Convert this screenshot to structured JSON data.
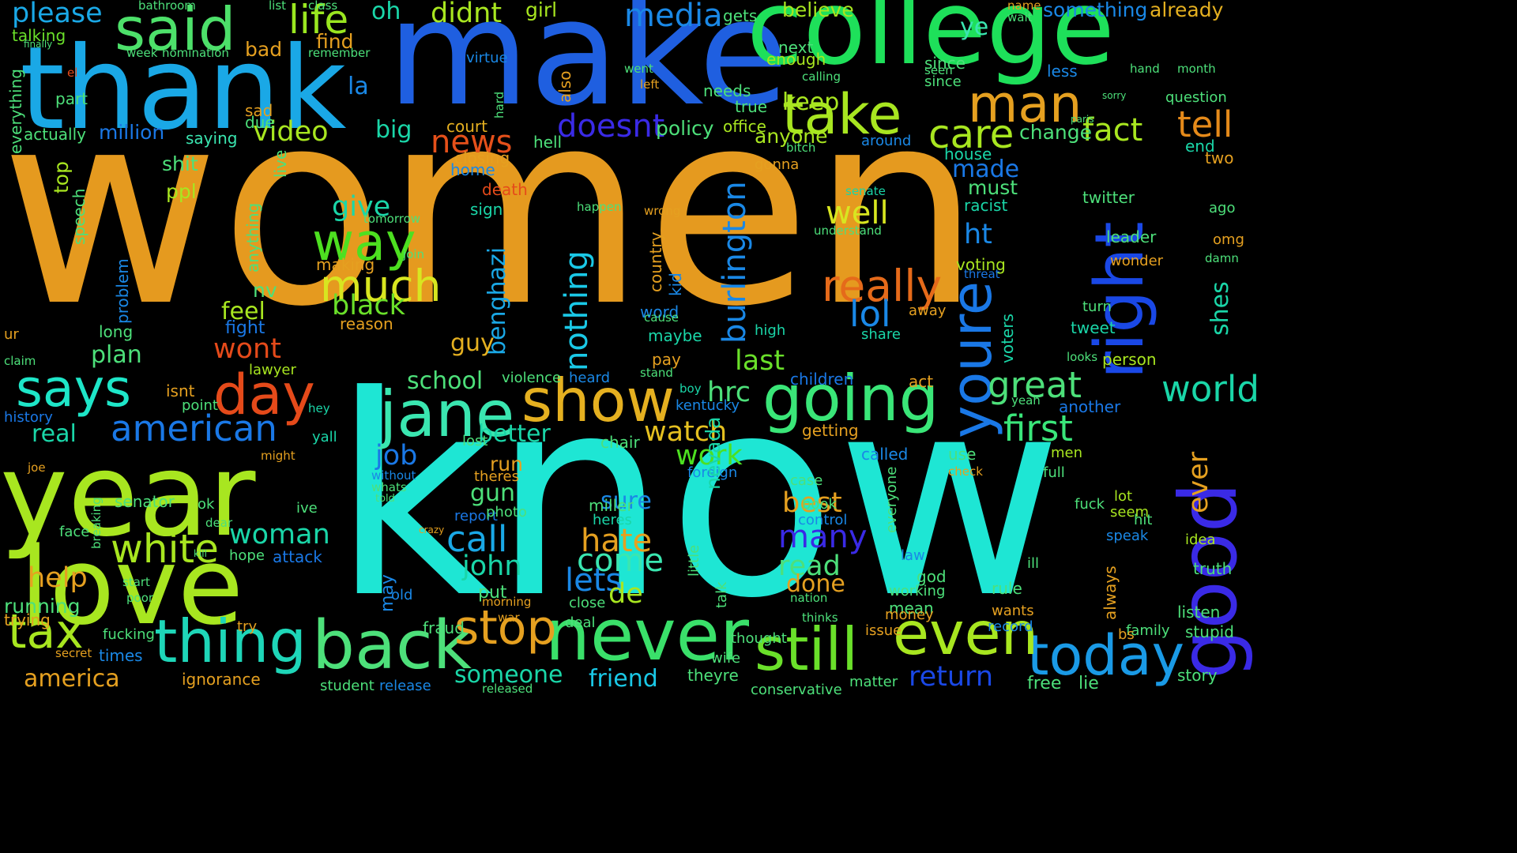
{
  "words": [
    {
      "text": "women",
      "color": "#e59a1f"
    },
    {
      "text": "know",
      "color": "#1ee6d4"
    },
    {
      "text": "make",
      "color": "#1f5fe0"
    },
    {
      "text": "college",
      "color": "#1ee05a"
    },
    {
      "text": "thank",
      "color": "#1aa8e6"
    },
    {
      "text": "year",
      "color": "#a8e620"
    },
    {
      "text": "love",
      "color": "#a8e620"
    },
    {
      "text": "good",
      "color": "#3a2ae6"
    },
    {
      "text": "back",
      "color": "#4de07a"
    },
    {
      "text": "never",
      "color": "#3ae06a"
    },
    {
      "text": "thing",
      "color": "#1ed6b8"
    },
    {
      "text": "said",
      "color": "#4de06a"
    },
    {
      "text": "jane",
      "color": "#3ae6b0"
    },
    {
      "text": "show",
      "color": "#e5b020"
    },
    {
      "text": "going",
      "color": "#3ae678"
    },
    {
      "text": "today",
      "color": "#1a9ae6"
    },
    {
      "text": "still",
      "color": "#6ae02a"
    },
    {
      "text": "even",
      "color": "#a8e620"
    },
    {
      "text": "take",
      "color": "#a8e620"
    },
    {
      "text": "man",
      "color": "#e5a020"
    },
    {
      "text": "right",
      "color": "#1a48e6"
    },
    {
      "text": "youre",
      "color": "#1a78e6"
    },
    {
      "text": "says",
      "color": "#1ee6c8"
    },
    {
      "text": "day",
      "color": "#e54a1a"
    },
    {
      "text": "tax",
      "color": "#a8e620"
    },
    {
      "text": "stop",
      "color": "#e5a020"
    },
    {
      "text": "really",
      "color": "#e56a1a"
    },
    {
      "text": "way",
      "color": "#4de020"
    },
    {
      "text": "much",
      "color": "#d8e620"
    },
    {
      "text": "white",
      "color": "#a8e620"
    },
    {
      "text": "american",
      "color": "#1a78e6"
    },
    {
      "text": "life",
      "color": "#9ae620"
    },
    {
      "text": "media",
      "color": "#1a88e6"
    },
    {
      "text": "tell",
      "color": "#e58a1a"
    },
    {
      "text": "care",
      "color": "#a8e620"
    },
    {
      "text": "world",
      "color": "#1ad6a8"
    },
    {
      "text": "first",
      "color": "#3ae67a"
    },
    {
      "text": "great",
      "color": "#4de07a"
    },
    {
      "text": "burlington",
      "color": "#1a88e6"
    },
    {
      "text": "nothing",
      "color": "#1ac8e6"
    },
    {
      "text": "benghazi",
      "color": "#1aa8e6"
    },
    {
      "text": "news",
      "color": "#e5501a"
    },
    {
      "text": "doesnt",
      "color": "#3a2ae6"
    },
    {
      "text": "fact",
      "color": "#a8e620"
    },
    {
      "text": "well",
      "color": "#d8e620"
    },
    {
      "text": "lol",
      "color": "#1a88e6"
    },
    {
      "text": "ever",
      "color": "#e5a020"
    },
    {
      "text": "shes",
      "color": "#1ad6a8"
    },
    {
      "text": "hate",
      "color": "#e5a020"
    },
    {
      "text": "call",
      "color": "#1aa8e6"
    },
    {
      "text": "come",
      "color": "#3ae6b0"
    },
    {
      "text": "lets",
      "color": "#1a88e6"
    },
    {
      "text": "de",
      "color": "#a8e620"
    },
    {
      "text": "someone",
      "color": "#1ad6a8"
    },
    {
      "text": "friend",
      "color": "#1ac8e6"
    },
    {
      "text": "return",
      "color": "#1a48e6"
    },
    {
      "text": "america",
      "color": "#e5a020"
    },
    {
      "text": "woman",
      "color": "#1ad6a8"
    },
    {
      "text": "help",
      "color": "#e5a020"
    },
    {
      "text": "john",
      "color": "#1ad6a8"
    },
    {
      "text": "work",
      "color": "#4de020"
    },
    {
      "text": "watch",
      "color": "#e5c020"
    },
    {
      "text": "best",
      "color": "#e5a020"
    },
    {
      "text": "many",
      "color": "#3a2ae6"
    },
    {
      "text": "read",
      "color": "#4de07a"
    },
    {
      "text": "done",
      "color": "#e5a020"
    },
    {
      "text": "last",
      "color": "#6ae02a"
    },
    {
      "text": "hrc",
      "color": "#4de07a"
    },
    {
      "text": "job",
      "color": "#1a78e6"
    },
    {
      "text": "better",
      "color": "#1ad6a8"
    },
    {
      "text": "school",
      "color": "#4de07a"
    },
    {
      "text": "wont",
      "color": "#e54a1a"
    },
    {
      "text": "feel",
      "color": "#a8e620"
    },
    {
      "text": "give",
      "color": "#1ad6a8"
    },
    {
      "text": "black",
      "color": "#6ae02a"
    },
    {
      "text": "guy",
      "color": "#e5b020"
    },
    {
      "text": "video",
      "color": "#a8e620"
    },
    {
      "text": "keep",
      "color": "#a8e620"
    },
    {
      "text": "please",
      "color": "#1aa8e6"
    },
    {
      "text": "oh",
      "color": "#1ad6a8"
    },
    {
      "text": "didnt",
      "color": "#a8e620"
    },
    {
      "text": "made",
      "color": "#1a78e6"
    },
    {
      "text": "twitter",
      "color": "#4de07a"
    },
    {
      "text": "sure",
      "color": "#1a88e6"
    },
    {
      "text": "gun",
      "color": "#4de07a"
    },
    {
      "text": "run",
      "color": "#e5a020"
    },
    {
      "text": "million",
      "color": "#1a78e6"
    },
    {
      "text": "ht",
      "color": "#1a88e6"
    },
    {
      "text": "change",
      "color": "#4de07a"
    },
    {
      "text": "must",
      "color": "#4de07a"
    },
    {
      "text": "plan",
      "color": "#4de07a"
    },
    {
      "text": "real",
      "color": "#1ad6a8"
    },
    {
      "text": "ye",
      "color": "#3ae6b0"
    },
    {
      "text": "la",
      "color": "#1a88e6"
    },
    {
      "text": "anyone",
      "color": "#a8e620"
    },
    {
      "text": "policy",
      "color": "#4de07a"
    },
    {
      "text": "big",
      "color": "#1ad6a8"
    },
    {
      "text": "top",
      "color": "#a8e620"
    },
    {
      "text": "ppl",
      "color": "#a8e620"
    },
    {
      "text": "shit",
      "color": "#4de07a"
    },
    {
      "text": "saying",
      "color": "#3ae6b0"
    },
    {
      "text": "find",
      "color": "#e5a020"
    },
    {
      "text": "bad",
      "color": "#e5a020"
    },
    {
      "text": "girl",
      "color": "#a8e620"
    },
    {
      "text": "believe",
      "color": "#a8e620"
    },
    {
      "text": "something",
      "color": "#1a88e6"
    },
    {
      "text": "already",
      "color": "#e5b020"
    },
    {
      "text": "talking",
      "color": "#6ae02a"
    },
    {
      "text": "hell",
      "color": "#4de07a"
    },
    {
      "text": "court",
      "color": "#e5b020"
    },
    {
      "text": "house",
      "color": "#1ad6a8"
    },
    {
      "text": "end",
      "color": "#1ad6a8"
    },
    {
      "text": "two",
      "color": "#e5a020"
    },
    {
      "text": "question",
      "color": "#4de07a"
    },
    {
      "text": "less",
      "color": "#1a88e6"
    },
    {
      "text": "since",
      "color": "#4de07a"
    },
    {
      "text": "next",
      "color": "#4de07a"
    },
    {
      "text": "enough",
      "color": "#a8e620"
    },
    {
      "text": "needs",
      "color": "#4de07a"
    },
    {
      "text": "true",
      "color": "#4de07a"
    },
    {
      "text": "office",
      "color": "#a8e620"
    },
    {
      "text": "also",
      "color": "#e5a020"
    },
    {
      "text": "part",
      "color": "#4de07a"
    },
    {
      "text": "actually",
      "color": "#4de07a"
    },
    {
      "text": "everything",
      "color": "#4de07a"
    },
    {
      "text": "sad",
      "color": "#e5a020"
    },
    {
      "text": "due",
      "color": "#4de07a"
    },
    {
      "text": "speech",
      "color": "#4de07a"
    },
    {
      "text": "anything",
      "color": "#4de07a"
    },
    {
      "text": "nv",
      "color": "#4de07a"
    },
    {
      "text": "problem",
      "color": "#1a88e6"
    },
    {
      "text": "long",
      "color": "#4de07a"
    },
    {
      "text": "fight",
      "color": "#1a78e6"
    },
    {
      "text": "isnt",
      "color": "#e5a020"
    },
    {
      "text": "point",
      "color": "#4de07a"
    },
    {
      "text": "lawyer",
      "color": "#a8e620"
    },
    {
      "text": "home",
      "color": "#1a88e6"
    },
    {
      "text": "death",
      "color": "#e54a1a"
    },
    {
      "text": "sign",
      "color": "#1ad6a8"
    },
    {
      "text": "closing",
      "color": "#e5a020"
    },
    {
      "text": "reason",
      "color": "#e5a020"
    },
    {
      "text": "making",
      "color": "#e5a020"
    },
    {
      "text": "join",
      "color": "#4de07a"
    },
    {
      "text": "country",
      "color": "#e5a020"
    },
    {
      "text": "kid",
      "color": "#1a88e6"
    },
    {
      "text": "word",
      "color": "#1a88e6"
    },
    {
      "text": "maybe",
      "color": "#1ad6a8"
    },
    {
      "text": "cause",
      "color": "#4de07a"
    },
    {
      "text": "pay",
      "color": "#e5a020"
    },
    {
      "text": "wrong",
      "color": "#e5a020"
    },
    {
      "text": "happen",
      "color": "#4de07a"
    },
    {
      "text": "senate",
      "color": "#1ad6a8"
    },
    {
      "text": "understand",
      "color": "#4de07a"
    },
    {
      "text": "racist",
      "color": "#1ad6a8"
    },
    {
      "text": "leader",
      "color": "#4de07a"
    },
    {
      "text": "wonder",
      "color": "#e5a020"
    },
    {
      "text": "voting",
      "color": "#a8e620"
    },
    {
      "text": "threat",
      "color": "#1a78e6"
    },
    {
      "text": "voters",
      "color": "#1ad6a8"
    },
    {
      "text": "tweet",
      "color": "#1ad6a8"
    },
    {
      "text": "person",
      "color": "#a8e620"
    },
    {
      "text": "another",
      "color": "#1a78e6"
    },
    {
      "text": "away",
      "color": "#e5a020"
    },
    {
      "text": "high",
      "color": "#1ad6a8"
    },
    {
      "text": "share",
      "color": "#1ad6a8"
    },
    {
      "text": "children",
      "color": "#1a78e6"
    },
    {
      "text": "act",
      "color": "#e5a020"
    },
    {
      "text": "getting",
      "color": "#e5a020"
    },
    {
      "text": "called",
      "color": "#1a88e6"
    },
    {
      "text": "use",
      "color": "#4de07a"
    },
    {
      "text": "men",
      "color": "#a8e620"
    },
    {
      "text": "full",
      "color": "#4de07a"
    },
    {
      "text": "kentucky",
      "color": "#1a88e6"
    },
    {
      "text": "foreign",
      "color": "#1a88e6"
    },
    {
      "text": "nevada",
      "color": "#1ad6a8"
    },
    {
      "text": "chair",
      "color": "#4de07a"
    },
    {
      "text": "miller",
      "color": "#4de07a"
    },
    {
      "text": "heres",
      "color": "#1ad6a8"
    },
    {
      "text": "case",
      "color": "#4de07a"
    },
    {
      "text": "book",
      "color": "#4de07a"
    },
    {
      "text": "control",
      "color": "#1a88e6"
    },
    {
      "text": "lot",
      "color": "#a8e620"
    },
    {
      "text": "seem",
      "color": "#a8e620"
    },
    {
      "text": "speak",
      "color": "#1a88e6"
    },
    {
      "text": "idea",
      "color": "#a8e620"
    },
    {
      "text": "truth",
      "color": "#4de07a"
    },
    {
      "text": "report",
      "color": "#1a78e6"
    },
    {
      "text": "photo",
      "color": "#4de07a"
    },
    {
      "text": "lost",
      "color": "#4de07a"
    },
    {
      "text": "senator",
      "color": "#4de07a"
    },
    {
      "text": "ok",
      "color": "#4de07a"
    },
    {
      "text": "hope",
      "color": "#4de07a"
    },
    {
      "text": "attack",
      "color": "#1a78e6"
    },
    {
      "text": "ive",
      "color": "#4de07a"
    },
    {
      "text": "face",
      "color": "#4de07a"
    },
    {
      "text": "running",
      "color": "#4de07a"
    },
    {
      "text": "trying",
      "color": "#e5a020"
    },
    {
      "text": "put",
      "color": "#4de07a"
    },
    {
      "text": "morning",
      "color": "#e5a020"
    },
    {
      "text": "close",
      "color": "#4de07a"
    },
    {
      "text": "deal",
      "color": "#4de07a"
    },
    {
      "text": "mean",
      "color": "#4de07a"
    },
    {
      "text": "money",
      "color": "#e5a020"
    },
    {
      "text": "rule",
      "color": "#4de07a"
    },
    {
      "text": "wants",
      "color": "#e5a020"
    },
    {
      "text": "record",
      "color": "#1a88e6"
    },
    {
      "text": "issue",
      "color": "#e5a020"
    },
    {
      "text": "family",
      "color": "#4de07a"
    },
    {
      "text": "listen",
      "color": "#4de07a"
    },
    {
      "text": "stupid",
      "color": "#4de07a"
    },
    {
      "text": "story",
      "color": "#4de07a"
    },
    {
      "text": "free",
      "color": "#4de07a"
    },
    {
      "text": "lie",
      "color": "#4de07a"
    },
    {
      "text": "theyre",
      "color": "#4de07a"
    },
    {
      "text": "wife",
      "color": "#4de07a"
    },
    {
      "text": "thought",
      "color": "#4de07a"
    },
    {
      "text": "times",
      "color": "#1a88e6"
    },
    {
      "text": "ignorance",
      "color": "#e5a020"
    },
    {
      "text": "student",
      "color": "#4de07a"
    },
    {
      "text": "release",
      "color": "#1a88e6"
    },
    {
      "text": "fucking",
      "color": "#4de07a"
    },
    {
      "text": "try",
      "color": "#e5a020"
    },
    {
      "text": "old",
      "color": "#1a88e6"
    },
    {
      "text": "may",
      "color": "#1a88e6"
    },
    {
      "text": "fraud",
      "color": "#4de07a"
    },
    {
      "text": "live",
      "color": "#4de07a"
    },
    {
      "text": "always",
      "color": "#e5a020"
    },
    {
      "text": "bs",
      "color": "#e5a020"
    },
    {
      "text": "god",
      "color": "#4de07a"
    },
    {
      "text": "law",
      "color": "#1a88e6"
    },
    {
      "text": "working",
      "color": "#4de07a"
    },
    {
      "text": "talk",
      "color": "#4de07a"
    },
    {
      "text": "little",
      "color": "#4de07a"
    },
    {
      "text": "everyone",
      "color": "#4de07a"
    },
    {
      "text": "hit",
      "color": "#4de07a"
    },
    {
      "text": "fuck",
      "color": "#4de07a"
    },
    {
      "text": "conservative",
      "color": "#4de07a"
    },
    {
      "text": "matter",
      "color": "#4de07a"
    },
    {
      "text": "released",
      "color": "#4de07a"
    },
    {
      "text": "nation",
      "color": "#4de07a"
    },
    {
      "text": "turn",
      "color": "#4de07a"
    },
    {
      "text": "ago",
      "color": "#4de07a"
    },
    {
      "text": "omg",
      "color": "#e5a020"
    },
    {
      "text": "damn",
      "color": "#4de07a"
    },
    {
      "text": "around",
      "color": "#1a88e6"
    },
    {
      "text": "gonna",
      "color": "#e5a020"
    },
    {
      "text": "yall",
      "color": "#1ad6a8"
    },
    {
      "text": "hey",
      "color": "#1ad6a8"
    },
    {
      "text": "history",
      "color": "#1a78e6"
    },
    {
      "text": "claim",
      "color": "#4de07a"
    },
    {
      "text": "ur",
      "color": "#e5a020"
    },
    {
      "text": "looks",
      "color": "#4de07a"
    },
    {
      "text": "heard",
      "color": "#1a88e6"
    },
    {
      "text": "violence",
      "color": "#4de07a"
    },
    {
      "text": "boy",
      "color": "#1ad6a8"
    },
    {
      "text": "stand",
      "color": "#4de07a"
    },
    {
      "text": "yeah",
      "color": "#4de07a"
    },
    {
      "text": "ill",
      "color": "#4de07a"
    },
    {
      "text": "check",
      "color": "#e5a020"
    },
    {
      "text": "theres",
      "color": "#e5a020"
    },
    {
      "text": "whats",
      "color": "#4de07a"
    },
    {
      "text": "without",
      "color": "#1a88e6"
    },
    {
      "text": "told",
      "color": "#4de07a"
    },
    {
      "text": "crazy",
      "color": "#e5a020"
    },
    {
      "text": "war",
      "color": "#e5a020"
    },
    {
      "text": "thinks",
      "color": "#4de07a"
    },
    {
      "text": "bitch",
      "color": "#4de07a"
    },
    {
      "text": "calling",
      "color": "#4de07a"
    },
    {
      "text": "since",
      "color": "#4de07a"
    },
    {
      "text": "seen",
      "color": "#4de07a"
    },
    {
      "text": "name",
      "color": "#e5a020"
    },
    {
      "text": "wait",
      "color": "#4de07a"
    },
    {
      "text": "month",
      "color": "#4de07a"
    },
    {
      "text": "hand",
      "color": "#4de07a"
    },
    {
      "text": "sorry",
      "color": "#4de07a"
    },
    {
      "text": "paris",
      "color": "#4de07a"
    },
    {
      "text": "remember",
      "color": "#4de07a"
    },
    {
      "text": "virtue",
      "color": "#1a88e6"
    },
    {
      "text": "week",
      "color": "#4de07a"
    },
    {
      "text": "nomination",
      "color": "#4de07a"
    },
    {
      "text": "gets",
      "color": "#4de07a"
    },
    {
      "text": "went",
      "color": "#4de07a"
    },
    {
      "text": "left",
      "color": "#e5a020"
    },
    {
      "text": "hard",
      "color": "#4de07a"
    },
    {
      "text": "tomorrow",
      "color": "#4de07a"
    },
    {
      "text": "kill",
      "color": "#4de07a"
    },
    {
      "text": "dear",
      "color": "#4de07a"
    },
    {
      "text": "might",
      "color": "#e5a020"
    },
    {
      "text": "breaking",
      "color": "#4de07a"
    },
    {
      "text": "poor",
      "color": "#4de07a"
    },
    {
      "text": "start",
      "color": "#4de07a"
    },
    {
      "text": "secret",
      "color": "#e5a020"
    },
    {
      "text": "joe",
      "color": "#e5a020"
    },
    {
      "text": "el",
      "color": "#e54a1a"
    },
    {
      "text": "finally",
      "color": "#4de07a"
    },
    {
      "text": "bathroom",
      "color": "#4de07a"
    },
    {
      "text": "list",
      "color": "#4de07a"
    },
    {
      "text": "class",
      "color": "#4de07a"
    }
  ]
}
